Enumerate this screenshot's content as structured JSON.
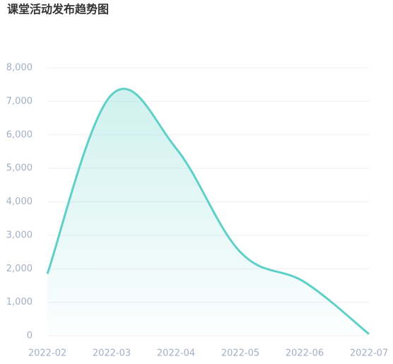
{
  "chart_data": {
    "type": "line",
    "title": "课堂活动发布趋势图",
    "categories": [
      "2022-02",
      "2022-03",
      "2022-04",
      "2022-05",
      "2022-06",
      "2022-07"
    ],
    "values": [
      1850,
      7200,
      5600,
      2500,
      1600,
      50
    ],
    "color": "#5fd0c8",
    "area": true,
    "ylim": [
      0,
      8000
    ],
    "yticks": [
      0,
      {
        "value": 1000,
        "label": "1,000"
      },
      {
        "value": 2000,
        "label": "2,000"
      },
      {
        "value": 3000,
        "label": "3,000"
      },
      {
        "value": 4000,
        "label": "4,000"
      },
      {
        "value": 5000,
        "label": "5,000"
      },
      {
        "value": 6000,
        "label": "6,000"
      },
      {
        "value": 7000,
        "label": "7,000"
      },
      {
        "value": 8000,
        "label": "8,000"
      }
    ],
    "grid": true
  }
}
